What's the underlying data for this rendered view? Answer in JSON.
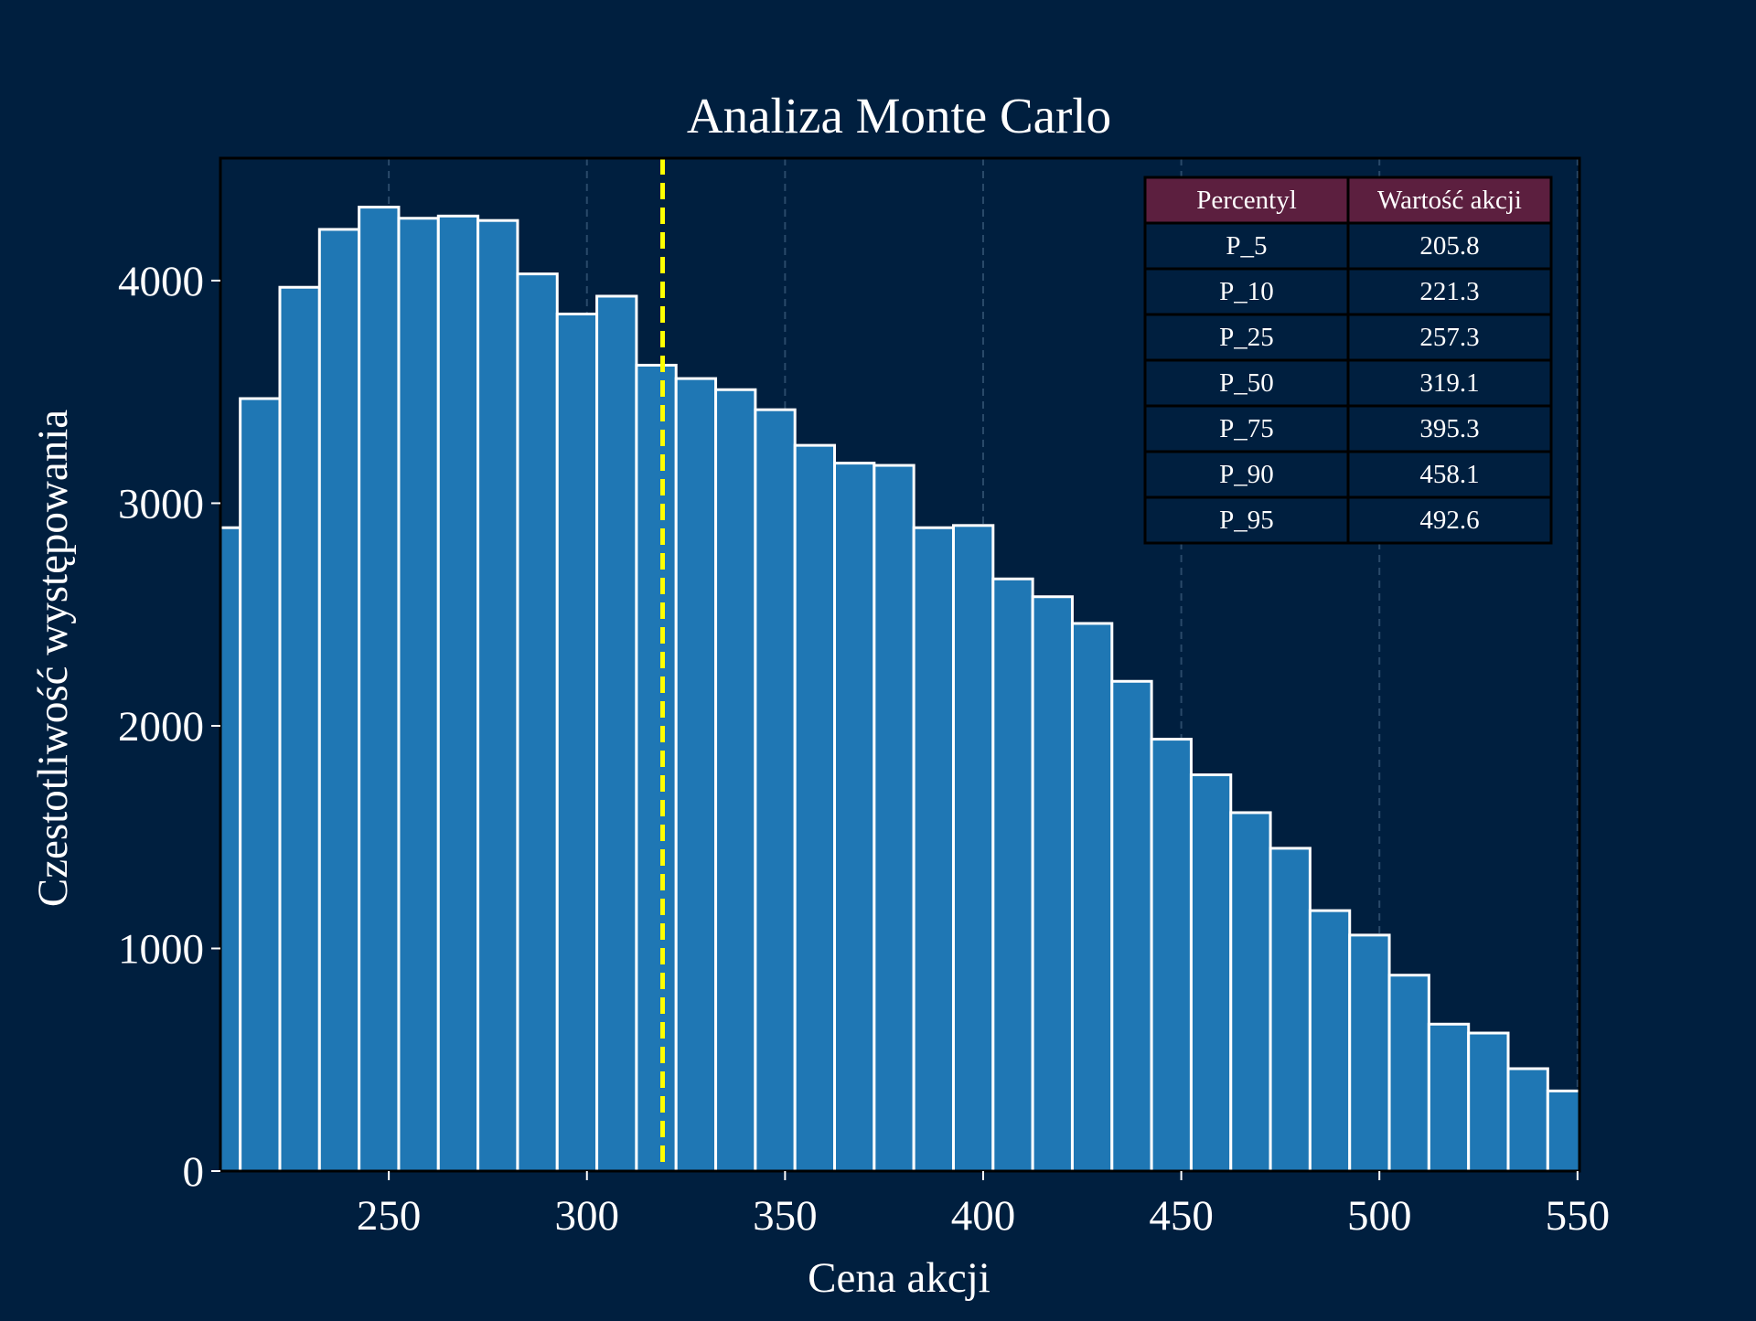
{
  "chart_data": {
    "type": "bar",
    "title": "Analiza Monte Carlo",
    "xlabel": "Cena akcji",
    "ylabel": "Czestotliwość występowania",
    "xlim": [
      207.5,
      550.5
    ],
    "ylim": [
      0,
      4550
    ],
    "x_ticks": [
      250,
      300,
      350,
      400,
      450,
      500,
      550
    ],
    "y_ticks": [
      0,
      1000,
      2000,
      3000,
      4000
    ],
    "grid": "vertical dashed",
    "bin_width": 10,
    "bins": [
      {
        "start": 202.5,
        "value": 2890
      },
      {
        "start": 212.5,
        "value": 3470
      },
      {
        "start": 222.5,
        "value": 3970
      },
      {
        "start": 232.5,
        "value": 4230
      },
      {
        "start": 242.5,
        "value": 4330
      },
      {
        "start": 252.5,
        "value": 4280
      },
      {
        "start": 262.5,
        "value": 4290
      },
      {
        "start": 272.5,
        "value": 4270
      },
      {
        "start": 282.5,
        "value": 4030
      },
      {
        "start": 292.5,
        "value": 3850
      },
      {
        "start": 302.5,
        "value": 3930
      },
      {
        "start": 312.5,
        "value": 3620
      },
      {
        "start": 322.5,
        "value": 3560
      },
      {
        "start": 332.5,
        "value": 3510
      },
      {
        "start": 342.5,
        "value": 3420
      },
      {
        "start": 352.5,
        "value": 3260
      },
      {
        "start": 362.5,
        "value": 3180
      },
      {
        "start": 372.5,
        "value": 3170
      },
      {
        "start": 382.5,
        "value": 2890
      },
      {
        "start": 392.5,
        "value": 2900
      },
      {
        "start": 402.5,
        "value": 2660
      },
      {
        "start": 412.5,
        "value": 2580
      },
      {
        "start": 422.5,
        "value": 2460
      },
      {
        "start": 432.5,
        "value": 2200
      },
      {
        "start": 442.5,
        "value": 1940
      },
      {
        "start": 452.5,
        "value": 1780
      },
      {
        "start": 462.5,
        "value": 1610
      },
      {
        "start": 472.5,
        "value": 1450
      },
      {
        "start": 482.5,
        "value": 1170
      },
      {
        "start": 492.5,
        "value": 1060
      },
      {
        "start": 502.5,
        "value": 880
      },
      {
        "start": 512.5,
        "value": 660
      },
      {
        "start": 522.5,
        "value": 620
      },
      {
        "start": 532.5,
        "value": 460
      },
      {
        "start": 542.5,
        "value": 360
      }
    ],
    "median_line": {
      "value": 319.1,
      "style": "dashed"
    },
    "percentile_table": {
      "headers": [
        "Percentyl",
        "Wartość akcji"
      ],
      "rows": [
        [
          "P_5",
          "205.8"
        ],
        [
          "P_10",
          "221.3"
        ],
        [
          "P_25",
          "257.3"
        ],
        [
          "P_50",
          "319.1"
        ],
        [
          "P_75",
          "395.3"
        ],
        [
          "P_90",
          "458.1"
        ],
        [
          "P_95",
          "492.6"
        ]
      ]
    }
  },
  "colors": {
    "background": "#001f3f",
    "bar_fill": "#1f77b4",
    "bar_edge": "#ffffff",
    "median_line": "#ffff00",
    "grid": "#2a4a6a",
    "table_header": "#5c1f3f",
    "table_cell": "#001f3f",
    "table_border": "#000000",
    "text": "#ffffff"
  }
}
